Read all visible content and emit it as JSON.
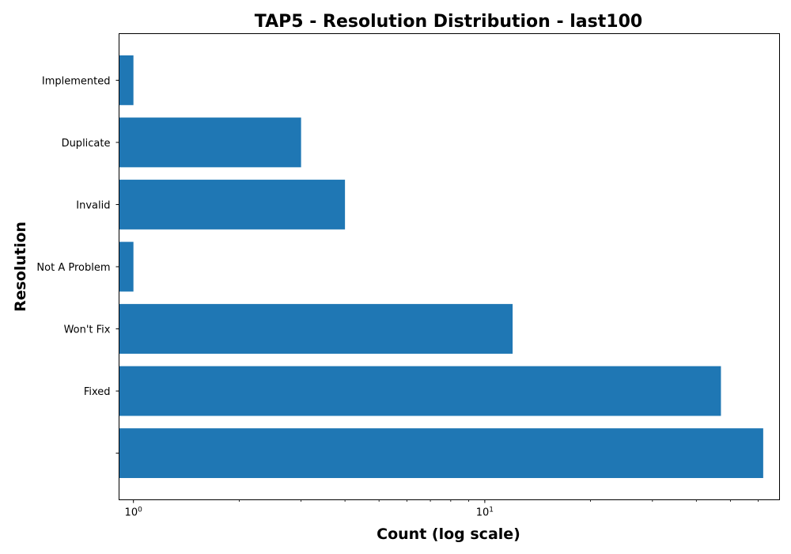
{
  "chart_data": {
    "type": "bar",
    "orientation": "horizontal",
    "title": "TAP5 - Resolution Distribution - last100",
    "xlabel": "Count (log scale)",
    "ylabel": "Resolution",
    "x_scale": "log",
    "xlim": [
      0.91,
      69
    ],
    "x_ticks": [
      {
        "value": 1,
        "base": "10",
        "exp": "0"
      },
      {
        "value": 10,
        "base": "10",
        "exp": "1"
      }
    ],
    "categories": [
      "",
      "Fixed",
      "Won't Fix",
      "Not A Problem",
      "Invalid",
      "Duplicate",
      "Implemented"
    ],
    "values": [
      62,
      47,
      12,
      1,
      4,
      3,
      1
    ],
    "color": "#1f77b4",
    "grid": false
  }
}
